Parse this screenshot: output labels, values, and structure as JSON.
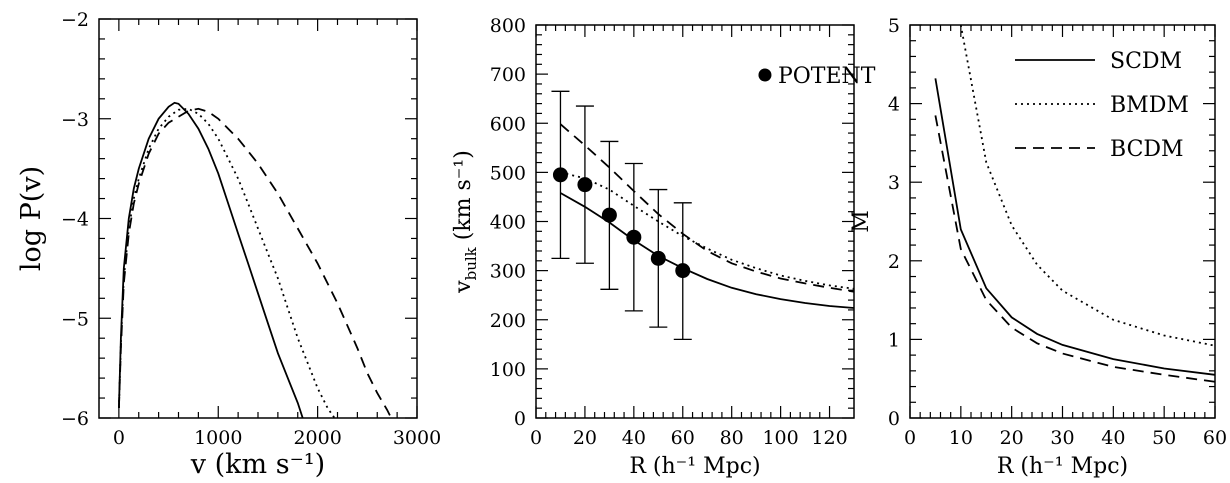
{
  "chart_data": [
    {
      "type": "line",
      "xlabel": "v (km s⁻¹)",
      "ylabel": "log P(v)",
      "xlim": [
        -200,
        3000
      ],
      "ylim": [
        -6,
        -2
      ],
      "xticks": [
        0,
        1000,
        2000,
        3000
      ],
      "yticks": [
        -6,
        -5,
        -4,
        -3,
        -2
      ],
      "xtick_labels": [
        "0",
        "1000",
        "2000",
        "3000"
      ],
      "ytick_labels": [
        "−6",
        "−5",
        "−4",
        "−3",
        "−2"
      ],
      "series": [
        {
          "style": "solid",
          "x": [
            0,
            20,
            50,
            100,
            150,
            200,
            300,
            400,
            500,
            560,
            600,
            700,
            800,
            900,
            1000,
            1100,
            1200,
            1300,
            1400,
            1500,
            1600,
            1700,
            1800,
            1850
          ],
          "y": [
            -5.9,
            -5.2,
            -4.5,
            -4.0,
            -3.7,
            -3.5,
            -3.2,
            -3.0,
            -2.88,
            -2.84,
            -2.85,
            -2.95,
            -3.1,
            -3.3,
            -3.55,
            -3.85,
            -4.15,
            -4.45,
            -4.75,
            -5.05,
            -5.35,
            -5.6,
            -5.85,
            -6.0
          ]
        },
        {
          "style": "dotted",
          "x": [
            0,
            20,
            50,
            100,
            150,
            200,
            300,
            400,
            500,
            600,
            700,
            800,
            900,
            1000,
            1100,
            1200,
            1300,
            1400,
            1500,
            1600,
            1700,
            1800,
            1900,
            2000,
            2100,
            2170
          ],
          "y": [
            -5.9,
            -5.25,
            -4.6,
            -4.1,
            -3.8,
            -3.6,
            -3.3,
            -3.1,
            -2.98,
            -2.91,
            -2.9,
            -2.95,
            -3.05,
            -3.2,
            -3.4,
            -3.6,
            -3.85,
            -4.1,
            -4.35,
            -4.6,
            -4.9,
            -5.2,
            -5.45,
            -5.7,
            -5.9,
            -6.0
          ]
        },
        {
          "style": "dashed",
          "x": [
            0,
            20,
            50,
            100,
            150,
            200,
            300,
            400,
            500,
            600,
            700,
            800,
            900,
            1000,
            1200,
            1400,
            1600,
            1800,
            2000,
            2200,
            2400,
            2500,
            2600,
            2700,
            2740
          ],
          "y": [
            -5.9,
            -5.3,
            -4.65,
            -4.15,
            -3.85,
            -3.65,
            -3.35,
            -3.15,
            -3.04,
            -2.98,
            -2.92,
            -2.9,
            -2.93,
            -3.0,
            -3.2,
            -3.45,
            -3.75,
            -4.1,
            -4.45,
            -4.85,
            -5.3,
            -5.55,
            -5.75,
            -5.92,
            -6.0
          ]
        }
      ]
    },
    {
      "type": "line",
      "xlabel": "R (h⁻¹ Mpc)",
      "ylabel": "v",
      "ylabel_sub": "bulk",
      "ylabel_rest": " (km s⁻¹)",
      "xlim": [
        0,
        130
      ],
      "ylim": [
        0,
        800
      ],
      "xticks": [
        0,
        20,
        40,
        60,
        80,
        100,
        120
      ],
      "yticks": [
        0,
        100,
        200,
        300,
        400,
        500,
        600,
        700,
        800
      ],
      "xtick_labels": [
        "0",
        "20",
        "40",
        "60",
        "80",
        "100",
        "120"
      ],
      "ytick_labels": [
        "0",
        "100",
        "200",
        "300",
        "400",
        "500",
        "600",
        "700",
        "800"
      ],
      "legend": {
        "label": "POTENT",
        "location": "top-right"
      },
      "series": [
        {
          "style": "solid",
          "x": [
            10,
            20,
            30,
            40,
            50,
            60,
            70,
            80,
            90,
            100,
            110,
            120,
            130
          ],
          "y": [
            458,
            430,
            398,
            362,
            330,
            305,
            283,
            265,
            252,
            242,
            234,
            228,
            224
          ]
        },
        {
          "style": "dotted",
          "x": [
            10,
            20,
            30,
            40,
            50,
            60,
            70,
            80,
            90,
            100,
            110,
            120,
            130
          ],
          "y": [
            500,
            488,
            465,
            432,
            400,
            370,
            345,
            322,
            305,
            290,
            279,
            270,
            263
          ]
        },
        {
          "style": "dashed",
          "x": [
            10,
            20,
            30,
            40,
            50,
            60,
            70,
            80,
            90,
            100,
            110,
            120,
            130
          ],
          "y": [
            598,
            555,
            510,
            462,
            415,
            375,
            340,
            315,
            298,
            284,
            274,
            265,
            257
          ]
        }
      ],
      "points": {
        "name": "POTENT",
        "x": [
          10,
          20,
          30,
          40,
          50,
          60
        ],
        "y": [
          495,
          475,
          413,
          368,
          325,
          300
        ],
        "err_low": [
          325,
          315,
          262,
          218,
          185,
          160
        ],
        "err_high": [
          665,
          635,
          563,
          518,
          465,
          438
        ]
      }
    },
    {
      "type": "line",
      "xlabel": "R (h⁻¹ Mpc)",
      "ylabel": "M",
      "xlim": [
        0,
        60
      ],
      "ylim": [
        0,
        5
      ],
      "xticks": [
        0,
        10,
        20,
        30,
        40,
        50,
        60
      ],
      "yticks": [
        0,
        1,
        2,
        3,
        4,
        5
      ],
      "xtick_labels": [
        "0",
        "10",
        "20",
        "30",
        "40",
        "50",
        "60"
      ],
      "ytick_labels": [
        "0",
        "1",
        "2",
        "3",
        "4",
        "5"
      ],
      "legend_location": "top-right",
      "series": [
        {
          "name": "SCDM",
          "style": "solid",
          "x": [
            5,
            10,
            15,
            20,
            25,
            30,
            40,
            50,
            60
          ],
          "y": [
            4.32,
            2.4,
            1.65,
            1.28,
            1.07,
            0.93,
            0.75,
            0.63,
            0.55
          ]
        },
        {
          "name": "BMDM",
          "style": "dotted",
          "x": [
            10,
            15,
            20,
            25,
            30,
            40,
            50,
            60
          ],
          "y": [
            5.0,
            3.25,
            2.45,
            1.95,
            1.62,
            1.25,
            1.05,
            0.92
          ]
        },
        {
          "name": "BCDM",
          "style": "dashed",
          "x": [
            5,
            10,
            15,
            20,
            25,
            30,
            40,
            50,
            60
          ],
          "y": [
            3.85,
            2.15,
            1.5,
            1.15,
            0.95,
            0.82,
            0.65,
            0.55,
            0.46
          ]
        }
      ]
    }
  ]
}
